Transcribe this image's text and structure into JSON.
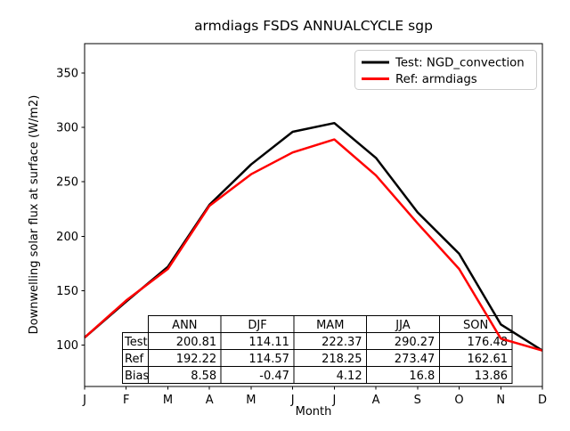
{
  "title": "armdiags FSDS ANNUALCYCLE sgp",
  "colors": {
    "test_line": "#000000",
    "ref_line": "#ff0000",
    "legend_border": "#cccccc",
    "axes": "#000000",
    "background": "#ffffff"
  },
  "legend": {
    "entries": [
      {
        "label": "Test: NGD_convection",
        "color": "#000000"
      },
      {
        "label": "Ref: armdiags",
        "color": "#ff0000"
      }
    ]
  },
  "x_axis": {
    "label": "Month",
    "ticks": [
      "J",
      "F",
      "M",
      "A",
      "M",
      "J",
      "J",
      "A",
      "S",
      "O",
      "N",
      "D"
    ]
  },
  "y_axis": {
    "label": "Downwelling solar flux at surface (W/m2)",
    "ticks": [
      100,
      150,
      200,
      250,
      300,
      350
    ]
  },
  "chart_data": {
    "type": "line",
    "title": "armdiags FSDS ANNUALCYCLE sgp",
    "xlabel": "Month",
    "ylabel": "Downwelling solar flux at surface (W/m2)",
    "x": [
      "J",
      "F",
      "M",
      "A",
      "M",
      "J",
      "J",
      "A",
      "S",
      "O",
      "N",
      "D"
    ],
    "series": [
      {
        "name": "Test: NGD_convection",
        "color": "#000000",
        "linewidth": 2.5,
        "values": [
          107,
          140,
          172,
          229,
          266,
          296,
          304,
          272,
          222,
          184,
          119,
          95
        ]
      },
      {
        "name": "Ref: armdiags",
        "color": "#ff0000",
        "linewidth": 2.5,
        "values": [
          107,
          141,
          170,
          228,
          257,
          277,
          289,
          256,
          212,
          170,
          106,
          95
        ]
      }
    ],
    "values_note": "monthly values estimated from pixel positions against axis ticks",
    "ylim": [
      62,
      377
    ],
    "grid": false,
    "legend_position": "upper right"
  },
  "table": {
    "columns": [
      "ANN",
      "DJF",
      "MAM",
      "JJA",
      "SON"
    ],
    "rows": [
      {
        "label": "Test",
        "values": [
          "200.81",
          "114.11",
          "222.37",
          "290.27",
          "176.48"
        ]
      },
      {
        "label": "Ref",
        "values": [
          "192.22",
          "114.57",
          "218.25",
          "273.47",
          "162.61"
        ]
      },
      {
        "label": "Bias",
        "values": [
          "8.58",
          "-0.47",
          "4.12",
          "16.8",
          "13.86"
        ]
      }
    ]
  }
}
